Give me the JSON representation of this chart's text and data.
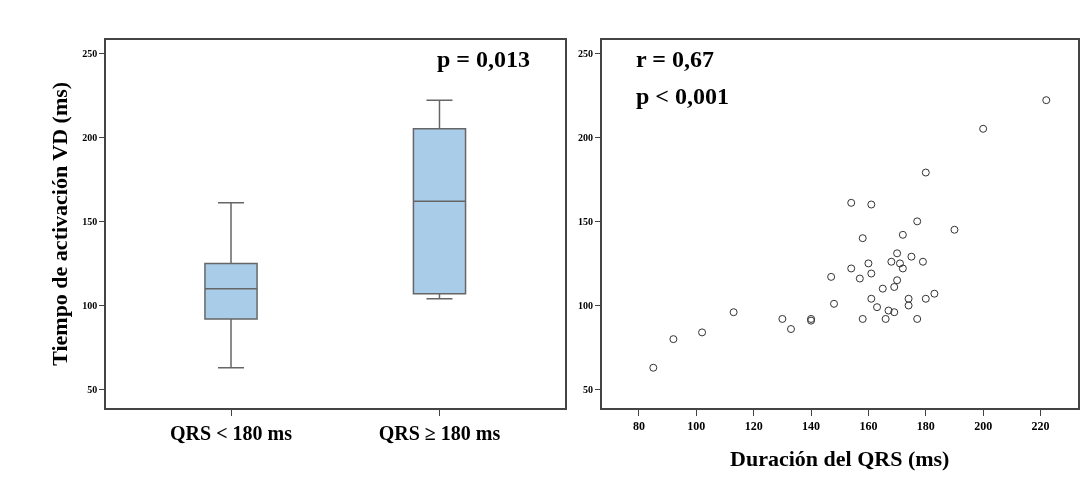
{
  "chart_data": [
    {
      "type": "box",
      "ylabel": "Tiempo de activación VD (ms)",
      "categories": [
        "QRS < 180 ms",
        "QRS ≥ 180 ms"
      ],
      "boxes": [
        {
          "low": 63,
          "q1": 92,
          "median": 110,
          "q3": 125,
          "high": 161
        },
        {
          "low": 104,
          "q1": 107,
          "median": 162,
          "q3": 205,
          "high": 222
        }
      ],
      "color": "#a9cce9",
      "ylim": [
        39,
        258
      ],
      "yticks": [
        50,
        100,
        150,
        200,
        250
      ],
      "annotations": [
        "p = 0,013"
      ]
    },
    {
      "type": "scatter",
      "xlabel": "Duración del QRS (ms)",
      "x": [
        85,
        92,
        102,
        113,
        130,
        133,
        140,
        140,
        147,
        148,
        154,
        154,
        157,
        158,
        158,
        160,
        161,
        161,
        161,
        163,
        165,
        166,
        167,
        168,
        169,
        169,
        170,
        170,
        171,
        172,
        172,
        174,
        174,
        175,
        177,
        177,
        179,
        180,
        180,
        183,
        190,
        200,
        222
      ],
      "values": [
        63,
        80,
        84,
        96,
        92,
        86,
        92,
        91,
        117,
        101,
        161,
        122,
        116,
        140,
        92,
        125,
        160,
        119,
        104,
        99,
        110,
        92,
        97,
        126,
        111,
        96,
        131,
        115,
        125,
        142,
        122,
        104,
        100,
        129,
        150,
        92,
        126,
        179,
        104,
        107,
        145,
        205,
        222
      ],
      "color": "#333333",
      "marker": "circle",
      "xlim": [
        67,
        233
      ],
      "xticks": [
        80,
        100,
        120,
        140,
        160,
        180,
        200,
        220
      ],
      "ylim": [
        39,
        258
      ],
      "yticks": [
        50,
        100,
        150,
        200,
        250
      ],
      "annotations": [
        "r = 0,67",
        "p < 0,001"
      ]
    }
  ]
}
